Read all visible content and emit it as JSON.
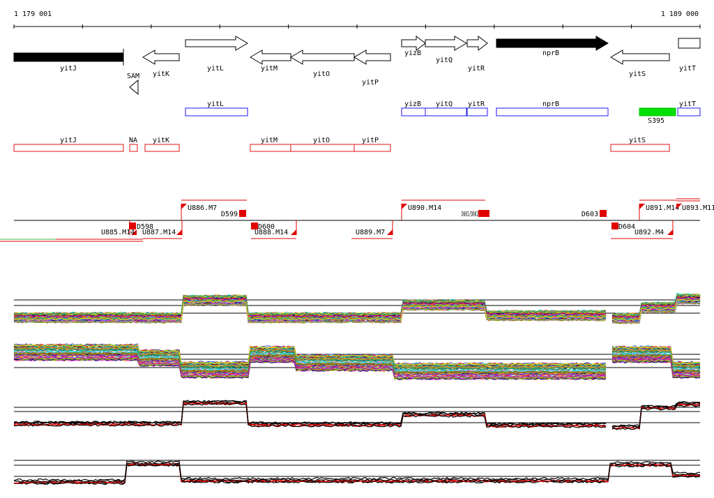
{
  "coordinates": {
    "start": "1 179 001",
    "end": "1 189 000"
  },
  "colors": {
    "gene": "#000000",
    "annotation_blue": "#1a1aff",
    "annotation_red": "#e01010",
    "highlight_green": "#00e000",
    "segment_red": "#e00000"
  },
  "genes": [
    {
      "name": "yitJ",
      "strand": "+",
      "filled": true
    },
    {
      "name": "SAM",
      "strand": "-",
      "filled": false
    },
    {
      "name": "yitK",
      "strand": "-",
      "filled": false
    },
    {
      "name": "yitL",
      "strand": "+",
      "filled": false
    },
    {
      "name": "yitM",
      "strand": "-",
      "filled": false
    },
    {
      "name": "yitO",
      "strand": "-",
      "filled": false
    },
    {
      "name": "yitP",
      "strand": "-",
      "filled": false
    },
    {
      "name": "yizB",
      "strand": "+",
      "filled": false
    },
    {
      "name": "yitQ",
      "strand": "+",
      "filled": false
    },
    {
      "name": "yitR",
      "strand": "+",
      "filled": false
    },
    {
      "name": "nprB",
      "strand": "+",
      "filled": true
    },
    {
      "name": "yitS",
      "strand": "-",
      "filled": false
    },
    {
      "name": "yitT",
      "strand": "+",
      "filled": false
    }
  ],
  "blue_annotations": [
    "yitL",
    "yizB",
    "yitQ",
    "yitR",
    "nprB",
    "yitT"
  ],
  "green_annotation": "S395",
  "red_annotations": [
    "yitJ",
    "NA",
    "yitK",
    "yitM",
    "yitO",
    "yitP",
    "yitS"
  ],
  "upper_segments": [
    "U886.M7",
    "D599",
    "U890.M14",
    "D603",
    "U891.M14",
    "U893.M11"
  ],
  "overlap_label": "D601/D602",
  "lower_segments": [
    "U885.M14",
    "D598",
    "U887.M14",
    "D600",
    "U888.M14",
    "U889.M7",
    "D604",
    "U892.M4"
  ]
}
